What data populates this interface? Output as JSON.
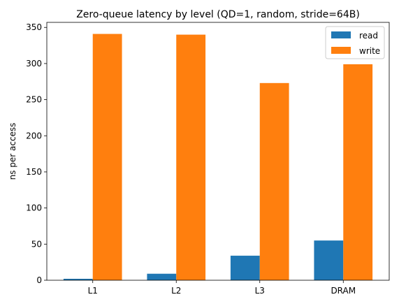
{
  "chart_data": {
    "type": "bar",
    "title": "Zero-queue latency by level (QD=1, random, stride=64B)",
    "xlabel": "",
    "ylabel": "ns per access",
    "categories": [
      "L1",
      "L2",
      "L3",
      "DRAM"
    ],
    "series": [
      {
        "name": "read",
        "values": [
          2,
          9,
          34,
          55
        ],
        "color": "#1f77b4"
      },
      {
        "name": "write",
        "values": [
          341,
          340,
          273,
          299
        ],
        "color": "#ff7f0e"
      }
    ],
    "ylim": [
      0,
      357
    ],
    "yticks": [
      0,
      50,
      100,
      150,
      200,
      250,
      300,
      350
    ],
    "grid": false,
    "legend_position": "top-right"
  }
}
